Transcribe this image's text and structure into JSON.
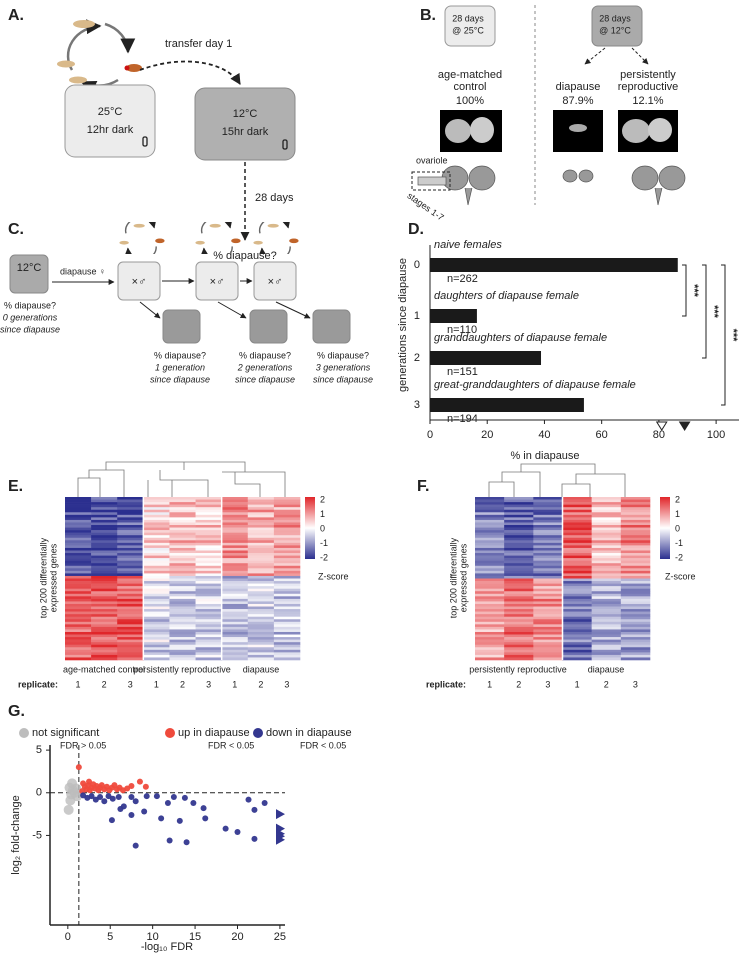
{
  "panels": {
    "A": {
      "label": "A.",
      "transfer": "transfer day 1",
      "box1": [
        "25°C",
        "12hr dark"
      ],
      "box2": [
        "12°C",
        "15hr dark"
      ],
      "duration": "28 days",
      "question": "% diapause?"
    },
    "B": {
      "label": "B.",
      "box1": [
        "28 days",
        "@ 25°C"
      ],
      "box2": [
        "28 days",
        "@ 12°C"
      ],
      "groups": [
        {
          "name": [
            "age-matched",
            "control"
          ],
          "pct": "100%"
        },
        {
          "name": [
            "diapause"
          ],
          "pct": "87.9%"
        },
        {
          "name": [
            "persistently",
            "reproductive"
          ],
          "pct": "12.1%"
        }
      ],
      "ovariole": "ovariole",
      "stages": "stages 1-7"
    },
    "C": {
      "label": "C.",
      "start": "12°C",
      "diapause": "diapause ♀",
      "cross": "×♂",
      "generations": [
        [
          "% diapause?",
          "0 generations",
          "since diapause"
        ],
        [
          "% diapause?",
          "1 generation",
          "since diapause"
        ],
        [
          "% diapause?",
          "2 generations",
          "since diapause"
        ],
        [
          "% diapause?",
          "3 generations",
          "since diapause"
        ]
      ]
    },
    "D": {
      "label": "D."
    },
    "E": {
      "label": "E.",
      "ylabel": [
        "top 200 differentially",
        "expressed genes"
      ],
      "scale": [
        2,
        1,
        0,
        -1,
        -2
      ],
      "zlabel": "Z-score",
      "groups": [
        "age-matched control",
        "persistently reproductive",
        "diapause"
      ],
      "replicate_label": "replicate:",
      "replicates": [
        1,
        2,
        3
      ]
    },
    "F": {
      "label": "F.",
      "ylabel": [
        "top 200 differentially",
        "expressed genes"
      ],
      "scale": [
        2,
        1,
        0,
        -1,
        -2
      ],
      "zlabel": "Z-score",
      "groups": [
        "persistently reproductive",
        "diapause"
      ],
      "replicate_label": "replicate:",
      "replicates": [
        1,
        2,
        3
      ]
    },
    "G": {
      "label": "G."
    }
  },
  "chart_data": [
    {
      "type": "bar",
      "orientation": "horizontal",
      "categories": [
        "0",
        "1",
        "2",
        "3"
      ],
      "annotations": [
        "naive females",
        "daughters of diapause female",
        "granddaughters of diapause female",
        "great-granddaughters of diapause female"
      ],
      "n_labels": [
        "n=262",
        "n=110",
        "n=151",
        "n=194"
      ],
      "values": [
        86.6,
        16.4,
        38.8,
        53.8
      ],
      "color": "#1a1a1a",
      "xlim": [
        0,
        108
      ],
      "xticks": [
        0,
        20,
        40,
        60,
        80,
        100
      ],
      "xlabel": "% in diapause",
      "ylabel": "generations since diapause",
      "markers": [
        {
          "value": 81,
          "filled": false
        },
        {
          "value": 89,
          "filled": true
        }
      ],
      "significance": [
        "***",
        "***",
        "***"
      ]
    },
    {
      "type": "scatter",
      "series": [
        {
          "name": "not significant",
          "fdr_label": "FDR > 0.05",
          "color": "#bdbdbd",
          "x": [
            0.2,
            0.4,
            0.6,
            0.3,
            0.8,
            1.0,
            0.1,
            0.5,
            1.1
          ],
          "y": [
            0.6,
            -0.2,
            0.3,
            -0.9,
            0.0,
            0.5,
            -2.0,
            1.1,
            -0.4
          ]
        },
        {
          "name": "up in diapause",
          "fdr_label": "FDR < 0.05",
          "color": "#ef4a3c",
          "x": [
            1.3,
            1.8,
            2.0,
            2.2,
            2.4,
            2.6,
            2.8,
            3.0,
            3.2,
            3.4,
            3.6,
            3.8,
            4.0,
            4.3,
            4.6,
            4.9,
            5.2,
            5.5,
            5.8,
            6.1,
            6.5,
            7.0,
            7.5,
            8.5,
            9.2,
            1.7,
            2.5
          ],
          "y": [
            3.0,
            1.1,
            0.7,
            0.4,
            0.9,
            0.3,
            0.6,
            1.0,
            0.5,
            0.8,
            0.3,
            0.6,
            0.9,
            0.4,
            0.7,
            0.3,
            0.6,
            0.9,
            0.4,
            0.6,
            0.3,
            0.5,
            0.8,
            1.3,
            0.7,
            0.2,
            1.3
          ]
        },
        {
          "name": "down in diapause",
          "fdr_label": "FDR < 0.05",
          "color": "#33378f",
          "x": [
            1.8,
            2.3,
            2.8,
            3.3,
            3.8,
            4.3,
            4.8,
            5.3,
            6.0,
            6.6,
            7.5,
            8.0,
            9.3,
            10.5,
            11.8,
            12.5,
            13.8,
            14.8,
            16.0,
            11.0,
            13.2,
            16.2,
            22.0,
            5.2,
            7.5,
            14.0,
            12.0,
            8.0,
            18.6,
            20.0,
            22.0,
            23.2,
            21.3,
            6.2,
            9.0
          ],
          "y": [
            -0.3,
            -0.6,
            -0.4,
            -0.8,
            -0.5,
            -1.0,
            -0.4,
            -0.7,
            -0.5,
            -1.6,
            -0.5,
            -1.0,
            -0.4,
            -0.4,
            -1.2,
            -0.5,
            -0.6,
            -1.2,
            -1.8,
            -3.0,
            -3.3,
            -3.0,
            -2.0,
            -3.2,
            -2.6,
            -5.8,
            -5.6,
            -6.2,
            -4.2,
            -4.6,
            -5.4,
            -1.2,
            -0.8,
            -1.9,
            -2.2
          ]
        }
      ],
      "offscale": {
        "color": "#33378f",
        "values": [
          -2.5,
          -4.2,
          -4.8,
          -5.1,
          -5.5
        ]
      },
      "xlabel": "-log₁₀ FDR",
      "ylabel": "log₂ fold-change",
      "xlim": [
        -2.1,
        25.6
      ],
      "ylim": [
        -15.5,
        5.6
      ],
      "xticks": [
        0,
        5,
        10,
        15,
        20,
        25
      ],
      "yticks": [
        -5,
        0,
        5
      ],
      "thresholds": {
        "x": 1.3,
        "y": 0
      }
    }
  ]
}
